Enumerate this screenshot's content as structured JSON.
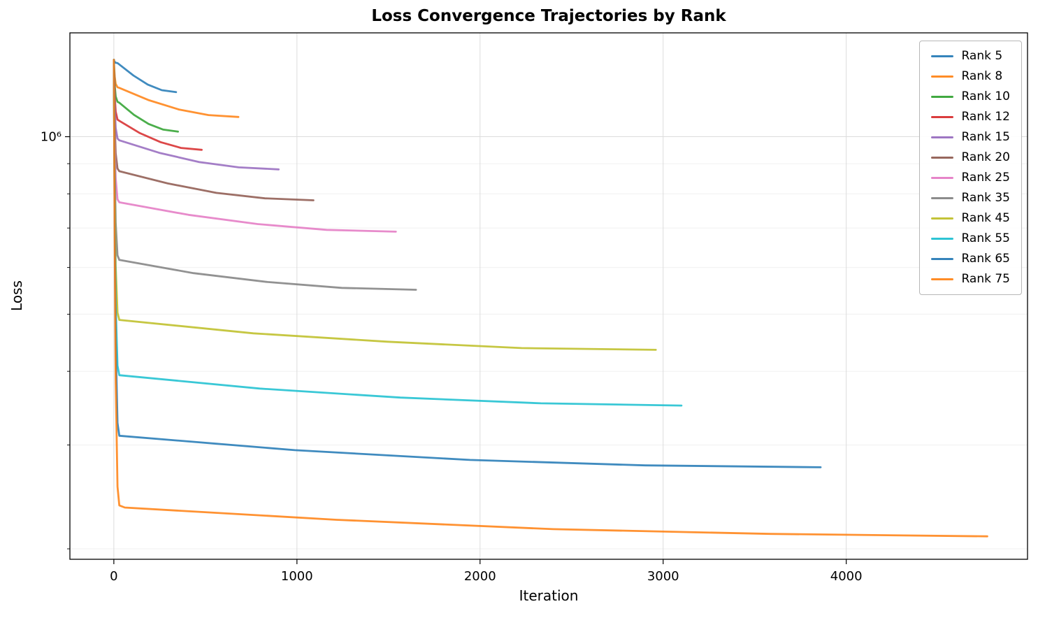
{
  "title": "Loss Convergence Trajectories by Rank",
  "chart_data": {
    "type": "line",
    "title": "Loss Convergence Trajectories by Rank",
    "xlabel": "Iteration",
    "ylabel": "Loss",
    "y_scale": "log",
    "grid": true,
    "legend_position": "upper right",
    "xlim": [
      -240,
      4990
    ],
    "ylim": [
      192000,
      1500000
    ],
    "x_ticks": [
      0,
      1000,
      2000,
      3000,
      4000
    ],
    "y_major_ticks": [
      1000000
    ],
    "y_major_tick_labels": [
      "10⁶"
    ],
    "y_minor_ticks": [
      200000,
      300000,
      400000,
      500000,
      600000,
      700000,
      800000,
      900000
    ],
    "series": [
      {
        "label": "Rank 5",
        "color": "#1f77b4",
        "iterations": 340,
        "start_loss": 1350000,
        "final_loss": 1190000,
        "points": [
          [
            0,
            1350000
          ],
          [
            2,
            1344000
          ],
          [
            5,
            1339000
          ],
          [
            10,
            1335000
          ],
          [
            20,
            1333000
          ],
          [
            107,
            1270000
          ],
          [
            185,
            1226000
          ],
          [
            262,
            1199000
          ],
          [
            340,
            1190000
          ]
        ]
      },
      {
        "label": "Rank 8",
        "color": "#ff7f0e",
        "iterations": 680,
        "start_loss": 1350000,
        "final_loss": 1080000,
        "points": [
          [
            0,
            1350000
          ],
          [
            2,
            1304000
          ],
          [
            5,
            1262000
          ],
          [
            10,
            1229000
          ],
          [
            20,
            1213000
          ],
          [
            30,
            1210000
          ],
          [
            192,
            1153000
          ],
          [
            355,
            1112000
          ],
          [
            517,
            1088000
          ],
          [
            680,
            1080000
          ]
        ]
      },
      {
        "label": "Rank 10",
        "color": "#2ca02c",
        "iterations": 350,
        "start_loss": 1350000,
        "final_loss": 1020000,
        "points": [
          [
            0,
            1350000
          ],
          [
            2,
            1281000
          ],
          [
            5,
            1219000
          ],
          [
            10,
            1170000
          ],
          [
            20,
            1146000
          ],
          [
            30,
            1142000
          ],
          [
            110,
            1089000
          ],
          [
            190,
            1051000
          ],
          [
            270,
            1028000
          ],
          [
            350,
            1020000
          ]
        ]
      },
      {
        "label": "Rank 12",
        "color": "#d62728",
        "iterations": 480,
        "start_loss": 1350000,
        "final_loss": 950000,
        "points": [
          [
            0,
            1350000
          ],
          [
            2,
            1256000
          ],
          [
            5,
            1169000
          ],
          [
            10,
            1103000
          ],
          [
            20,
            1069000
          ],
          [
            30,
            1064000
          ],
          [
            142,
            1014000
          ],
          [
            255,
            979000
          ],
          [
            367,
            957000
          ],
          [
            480,
            950000
          ]
        ]
      },
      {
        "label": "Rank 15",
        "color": "#9467bd",
        "iterations": 900,
        "start_loss": 1350000,
        "final_loss": 880000,
        "points": [
          [
            0,
            1350000
          ],
          [
            2,
            1230000
          ],
          [
            5,
            1120000
          ],
          [
            10,
            1035000
          ],
          [
            20,
            993000
          ],
          [
            30,
            986000
          ],
          [
            248,
            939000
          ],
          [
            465,
            906000
          ],
          [
            682,
            887000
          ],
          [
            900,
            880000
          ]
        ]
      },
      {
        "label": "Rank 20",
        "color": "#8c564b",
        "iterations": 1090,
        "start_loss": 1350000,
        "final_loss": 780000,
        "points": [
          [
            0,
            1350000
          ],
          [
            2,
            1193000
          ],
          [
            5,
            1049000
          ],
          [
            10,
            938000
          ],
          [
            20,
            883000
          ],
          [
            30,
            874000
          ],
          [
            295,
            833000
          ],
          [
            560,
            803000
          ],
          [
            825,
            786000
          ],
          [
            1090,
            780000
          ]
        ]
      },
      {
        "label": "Rank 25",
        "color": "#e377c2",
        "iterations": 1540,
        "start_loss": 1350000,
        "final_loss": 690000,
        "points": [
          [
            0,
            1350000
          ],
          [
            2,
            1160000
          ],
          [
            5,
            985000
          ],
          [
            10,
            851000
          ],
          [
            20,
            783000
          ],
          [
            30,
            774000
          ],
          [
            408,
            737000
          ],
          [
            785,
            711000
          ],
          [
            1162,
            695000
          ],
          [
            1540,
            690000
          ]
        ]
      },
      {
        "label": "Rank 35",
        "color": "#7f7f7f",
        "iterations": 1650,
        "start_loss": 1350000,
        "final_loss": 550000,
        "points": [
          [
            0,
            1350000
          ],
          [
            2,
            1108000
          ],
          [
            5,
            886000
          ],
          [
            10,
            715000
          ],
          [
            20,
            629000
          ],
          [
            30,
            618000
          ],
          [
            435,
            587000
          ],
          [
            840,
            567000
          ],
          [
            1245,
            554000
          ],
          [
            1650,
            550000
          ]
        ]
      },
      {
        "label": "Rank 45",
        "color": "#bcbd22",
        "iterations": 2960,
        "start_loss": 1350000,
        "final_loss": 435000,
        "points": [
          [
            0,
            1350000
          ],
          [
            2,
            1065000
          ],
          [
            5,
            805000
          ],
          [
            10,
            604000
          ],
          [
            20,
            503000
          ],
          [
            30,
            489000
          ],
          [
            762,
            464000
          ],
          [
            1495,
            449000
          ],
          [
            2227,
            438000
          ],
          [
            2960,
            435000
          ]
        ]
      },
      {
        "label": "Rank 55",
        "color": "#17becf",
        "iterations": 3100,
        "start_loss": 1350000,
        "final_loss": 350000,
        "points": [
          [
            0,
            1350000
          ],
          [
            2,
            1034000
          ],
          [
            5,
            745000
          ],
          [
            10,
            521000
          ],
          [
            20,
            409000
          ],
          [
            30,
            394000
          ],
          [
            797,
            374000
          ],
          [
            1565,
            361000
          ],
          [
            2332,
            353000
          ],
          [
            3100,
            350000
          ]
        ]
      },
      {
        "label": "Rank 65",
        "color": "#1f77b4",
        "iterations": 3860,
        "start_loss": 1350000,
        "final_loss": 275000,
        "points": [
          [
            0,
            1350000
          ],
          [
            2,
            1006000
          ],
          [
            5,
            691000
          ],
          [
            10,
            449000
          ],
          [
            20,
            327000
          ],
          [
            30,
            311000
          ],
          [
            988,
            294000
          ],
          [
            1945,
            283000
          ],
          [
            2902,
            277000
          ],
          [
            3860,
            275000
          ]
        ]
      },
      {
        "label": "Rank 75",
        "color": "#ff7f0e",
        "iterations": 4770,
        "start_loss": 1350000,
        "final_loss": 210000,
        "points": [
          [
            0,
            1350000
          ],
          [
            2,
            982000
          ],
          [
            5,
            645000
          ],
          [
            10,
            386000
          ],
          [
            20,
            255000
          ],
          [
            30,
            237000
          ],
          [
            60,
            235000
          ],
          [
            1215,
            224000
          ],
          [
            2400,
            216000
          ],
          [
            3585,
            212000
          ],
          [
            4770,
            210000
          ]
        ]
      }
    ]
  }
}
